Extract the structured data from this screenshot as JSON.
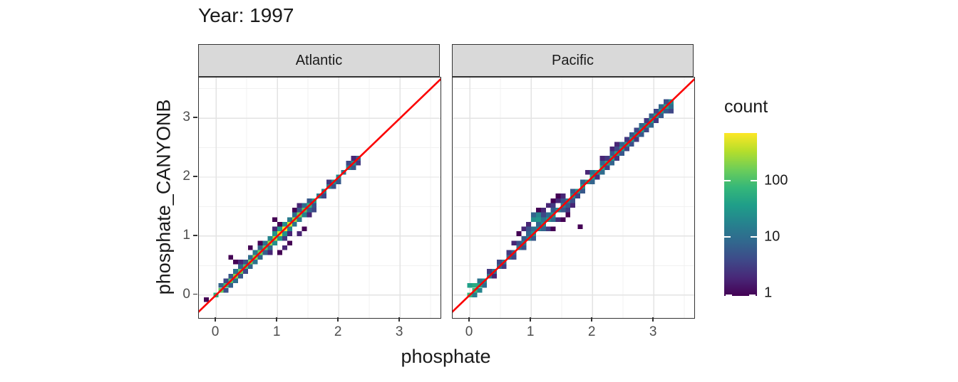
{
  "title": "Year: 1997",
  "axes": {
    "x_title": "phosphate",
    "y_title": "phosphate_CANYONB"
  },
  "legend": {
    "title": "count",
    "tick_labels": [
      "100",
      "10",
      "1"
    ]
  },
  "colors": {
    "strip_bg": "#d9d9d9",
    "strip_border": "#333333",
    "panel_border": "#333333",
    "grid_major": "#e3e3e3",
    "grid_minor": "#f1f1f1",
    "tick": "#333333",
    "tick_label": "#4d4d4d",
    "text": "#1a1a1a",
    "reference_line": "#fb0000",
    "viridis": [
      "#440154",
      "#482878",
      "#3e4a89",
      "#31688e",
      "#26828e",
      "#1f9e89",
      "#35b779",
      "#6ece58",
      "#b5de2b",
      "#fde725"
    ]
  },
  "chart_data": {
    "type": "heatmap",
    "subtype": "geom_bin2d_faceted",
    "title": "Year: 1997",
    "xlabel": "phosphate",
    "ylabel": "phosphate_CANYONB",
    "xlim": [
      -0.28,
      3.66
    ],
    "ylim": [
      -0.39,
      3.69
    ],
    "x_ticks": [
      0,
      1,
      2,
      3
    ],
    "y_ticks": [
      0,
      1,
      2,
      3
    ],
    "x_minor": [
      0.5,
      1.5,
      2.5,
      3.5
    ],
    "y_minor": [
      0.5,
      1.5,
      2.5,
      3.5
    ],
    "grid": true,
    "bin_size": 0.08,
    "reference_line": "y = x",
    "legend_position": "right",
    "color_scale": {
      "palette": "viridis",
      "transform": "log10",
      "domain": [
        1,
        700
      ],
      "legend_title": "count",
      "legend_ticks": [
        100,
        10,
        1
      ]
    },
    "facets": [
      {
        "name": "Atlantic",
        "bins": [
          [
            0.0,
            0.0,
            60
          ],
          [
            0.08,
            0.08,
            150
          ],
          [
            0.16,
            0.16,
            90
          ],
          [
            0.24,
            0.24,
            120
          ],
          [
            0.32,
            0.32,
            200
          ],
          [
            0.4,
            0.4,
            150
          ],
          [
            0.48,
            0.48,
            100
          ],
          [
            0.56,
            0.56,
            170
          ],
          [
            0.64,
            0.64,
            220
          ],
          [
            0.72,
            0.72,
            160
          ],
          [
            0.8,
            0.8,
            120
          ],
          [
            0.88,
            0.88,
            240
          ],
          [
            0.96,
            0.96,
            300
          ],
          [
            1.04,
            1.04,
            520
          ],
          [
            1.12,
            1.12,
            640
          ],
          [
            1.2,
            1.2,
            420
          ],
          [
            1.28,
            1.28,
            260
          ],
          [
            1.36,
            1.36,
            180
          ],
          [
            1.44,
            1.44,
            120
          ],
          [
            1.52,
            1.52,
            70
          ],
          [
            1.6,
            1.6,
            40
          ],
          [
            0.08,
            0.16,
            8
          ],
          [
            0.16,
            0.24,
            4
          ],
          [
            0.24,
            0.32,
            6
          ],
          [
            0.32,
            0.4,
            12
          ],
          [
            0.4,
            0.48,
            8
          ],
          [
            0.48,
            0.56,
            5
          ],
          [
            0.56,
            0.64,
            10
          ],
          [
            0.64,
            0.72,
            15
          ],
          [
            0.72,
            0.8,
            8
          ],
          [
            0.8,
            0.88,
            12
          ],
          [
            0.88,
            0.96,
            20
          ],
          [
            0.96,
            1.04,
            30
          ],
          [
            1.04,
            1.12,
            35
          ],
          [
            1.12,
            1.2,
            25
          ],
          [
            1.2,
            1.28,
            15
          ],
          [
            1.28,
            1.36,
            10
          ],
          [
            1.36,
            1.44,
            6
          ],
          [
            1.44,
            1.52,
            10
          ],
          [
            0.16,
            0.08,
            5
          ],
          [
            0.24,
            0.16,
            7
          ],
          [
            0.32,
            0.24,
            10
          ],
          [
            0.4,
            0.32,
            6
          ],
          [
            0.48,
            0.4,
            4
          ],
          [
            0.56,
            0.48,
            8
          ],
          [
            0.64,
            0.56,
            12
          ],
          [
            0.72,
            0.64,
            9
          ],
          [
            0.8,
            0.72,
            7
          ],
          [
            0.88,
            0.8,
            10
          ],
          [
            0.96,
            0.88,
            25
          ],
          [
            1.04,
            0.96,
            30
          ],
          [
            1.12,
            1.04,
            28
          ],
          [
            1.2,
            1.12,
            20
          ],
          [
            1.28,
            1.2,
            12
          ],
          [
            1.36,
            1.28,
            14
          ],
          [
            1.44,
            1.36,
            18
          ],
          [
            1.52,
            1.44,
            8
          ],
          [
            0.4,
            0.56,
            2
          ],
          [
            0.72,
            0.88,
            1
          ],
          [
            0.96,
            1.12,
            2
          ],
          [
            1.04,
            1.2,
            1
          ],
          [
            1.12,
            0.96,
            3
          ],
          [
            1.2,
            1.04,
            2
          ],
          [
            1.28,
            1.44,
            1
          ],
          [
            0.88,
            0.72,
            2
          ],
          [
            1.36,
            1.52,
            2
          ],
          [
            -0.16,
            -0.08,
            1
          ],
          [
            0.24,
            0.64,
            1
          ],
          [
            0.32,
            0.56,
            1
          ],
          [
            0.56,
            0.8,
            1
          ],
          [
            1.04,
            0.72,
            1
          ],
          [
            1.12,
            0.8,
            2
          ],
          [
            1.2,
            0.88,
            1
          ],
          [
            0.96,
            1.28,
            1
          ],
          [
            1.44,
            1.12,
            1
          ],
          [
            1.36,
            1.04,
            2
          ],
          [
            1.68,
            1.68,
            15
          ],
          [
            1.76,
            1.76,
            20
          ],
          [
            1.84,
            1.84,
            18
          ],
          [
            1.92,
            1.92,
            25
          ],
          [
            2.0,
            2.0,
            22
          ],
          [
            1.76,
            1.68,
            4
          ],
          [
            1.92,
            1.84,
            5
          ],
          [
            1.84,
            1.92,
            3
          ],
          [
            2.0,
            1.92,
            6
          ],
          [
            2.08,
            2.08,
            15
          ],
          [
            2.16,
            2.16,
            20
          ],
          [
            2.24,
            2.24,
            25
          ],
          [
            2.24,
            2.16,
            6
          ],
          [
            2.16,
            2.24,
            4
          ],
          [
            2.32,
            2.24,
            3
          ],
          [
            2.32,
            2.32,
            8
          ],
          [
            2.24,
            2.32,
            2
          ],
          [
            1.52,
            1.6,
            6
          ],
          [
            1.6,
            1.52,
            5
          ],
          [
            1.52,
            1.36,
            2
          ],
          [
            1.6,
            1.44,
            4
          ]
        ]
      },
      {
        "name": "Pacific",
        "bins": [
          [
            0.0,
            0.0,
            70
          ],
          [
            0.08,
            0.08,
            85
          ],
          [
            0.16,
            0.16,
            45
          ],
          [
            0.24,
            0.24,
            25
          ],
          [
            0.32,
            0.32,
            15
          ],
          [
            0.4,
            0.4,
            12
          ],
          [
            0.48,
            0.48,
            10
          ],
          [
            0.56,
            0.56,
            14
          ],
          [
            0.64,
            0.64,
            10
          ],
          [
            0.72,
            0.72,
            8
          ],
          [
            0.8,
            0.8,
            12
          ],
          [
            0.88,
            0.88,
            15
          ],
          [
            0.96,
            0.96,
            20
          ],
          [
            1.04,
            1.04,
            25
          ],
          [
            1.12,
            1.12,
            18
          ],
          [
            1.2,
            1.2,
            22
          ],
          [
            1.28,
            1.28,
            30
          ],
          [
            1.36,
            1.36,
            25
          ],
          [
            1.44,
            1.44,
            20
          ],
          [
            1.52,
            1.52,
            15
          ],
          [
            1.6,
            1.6,
            18
          ],
          [
            1.68,
            1.68,
            25
          ],
          [
            1.76,
            1.76,
            30
          ],
          [
            1.84,
            1.84,
            35
          ],
          [
            1.92,
            1.92,
            40
          ],
          [
            2.0,
            2.0,
            45
          ],
          [
            2.08,
            2.08,
            40
          ],
          [
            2.16,
            2.16,
            50
          ],
          [
            2.24,
            2.24,
            45
          ],
          [
            2.32,
            2.32,
            35
          ],
          [
            2.4,
            2.4,
            40
          ],
          [
            2.48,
            2.48,
            30
          ],
          [
            2.56,
            2.56,
            35
          ],
          [
            2.64,
            2.64,
            30
          ],
          [
            2.72,
            2.72,
            25
          ],
          [
            2.8,
            2.8,
            35
          ],
          [
            2.88,
            2.88,
            30
          ],
          [
            2.96,
            2.96,
            40
          ],
          [
            3.04,
            3.04,
            35
          ],
          [
            3.12,
            3.12,
            30
          ],
          [
            3.2,
            3.2,
            45
          ],
          [
            3.28,
            3.28,
            25
          ],
          [
            0.0,
            0.16,
            40
          ],
          [
            0.08,
            0.16,
            55
          ],
          [
            0.16,
            0.08,
            20
          ],
          [
            0.08,
            0.0,
            15
          ],
          [
            0.16,
            0.24,
            12
          ],
          [
            0.24,
            0.16,
            10
          ],
          [
            0.32,
            0.4,
            3
          ],
          [
            0.48,
            0.56,
            4
          ],
          [
            0.64,
            0.72,
            3
          ],
          [
            0.8,
            0.88,
            5
          ],
          [
            0.88,
            0.96,
            6
          ],
          [
            0.96,
            1.04,
            8
          ],
          [
            1.04,
            1.12,
            10
          ],
          [
            1.12,
            1.2,
            8
          ],
          [
            1.2,
            1.28,
            12
          ],
          [
            1.28,
            1.36,
            10
          ],
          [
            1.36,
            1.44,
            6
          ],
          [
            1.52,
            1.6,
            5
          ],
          [
            1.68,
            1.76,
            6
          ],
          [
            1.84,
            1.92,
            8
          ],
          [
            2.0,
            2.08,
            10
          ],
          [
            2.16,
            2.24,
            8
          ],
          [
            2.32,
            2.4,
            6
          ],
          [
            2.48,
            2.56,
            8
          ],
          [
            2.64,
            2.72,
            6
          ],
          [
            2.8,
            2.88,
            8
          ],
          [
            2.96,
            3.04,
            6
          ],
          [
            3.12,
            3.2,
            8
          ],
          [
            0.4,
            0.32,
            2
          ],
          [
            0.56,
            0.48,
            3
          ],
          [
            0.72,
            0.64,
            4
          ],
          [
            0.88,
            0.8,
            5
          ],
          [
            1.04,
            0.96,
            6
          ],
          [
            1.2,
            1.12,
            8
          ],
          [
            1.36,
            1.28,
            10
          ],
          [
            1.52,
            1.44,
            6
          ],
          [
            1.68,
            1.6,
            5
          ],
          [
            1.84,
            1.76,
            6
          ],
          [
            2.0,
            1.92,
            8
          ],
          [
            2.16,
            2.08,
            10
          ],
          [
            2.32,
            2.24,
            8
          ],
          [
            2.48,
            2.4,
            6
          ],
          [
            2.64,
            2.56,
            5
          ],
          [
            2.8,
            2.72,
            6
          ],
          [
            2.96,
            2.88,
            8
          ],
          [
            3.12,
            3.04,
            6
          ],
          [
            3.28,
            3.2,
            10
          ],
          [
            0.96,
            1.2,
            2
          ],
          [
            1.04,
            1.28,
            25
          ],
          [
            1.12,
            1.28,
            30
          ],
          [
            1.12,
            1.36,
            20
          ],
          [
            1.04,
            1.36,
            8
          ],
          [
            1.2,
            1.36,
            4
          ],
          [
            0.88,
            1.12,
            2
          ],
          [
            0.96,
            1.12,
            5
          ],
          [
            0.8,
            1.04,
            1
          ],
          [
            1.28,
            1.52,
            2
          ],
          [
            1.36,
            1.6,
            1
          ],
          [
            1.44,
            1.6,
            2
          ],
          [
            1.28,
            1.12,
            3
          ],
          [
            1.36,
            1.12,
            1
          ],
          [
            1.44,
            1.28,
            2
          ],
          [
            1.52,
            1.28,
            1
          ],
          [
            1.6,
            1.36,
            1
          ],
          [
            1.8,
            1.16,
            1
          ],
          [
            1.2,
            1.44,
            2
          ],
          [
            1.12,
            1.44,
            1
          ],
          [
            1.36,
            1.52,
            3
          ],
          [
            1.44,
            1.68,
            1
          ],
          [
            1.52,
            1.68,
            2
          ],
          [
            1.6,
            1.44,
            3
          ],
          [
            1.68,
            1.52,
            2
          ],
          [
            1.76,
            1.68,
            4
          ],
          [
            1.6,
            1.52,
            6
          ],
          [
            0.72,
            0.88,
            2
          ],
          [
            2.24,
            2.32,
            3
          ],
          [
            2.4,
            2.48,
            4
          ],
          [
            2.56,
            2.64,
            3
          ],
          [
            2.72,
            2.8,
            4
          ],
          [
            2.88,
            2.96,
            3
          ],
          [
            3.04,
            3.12,
            4
          ],
          [
            2.08,
            2.0,
            3
          ],
          [
            2.24,
            2.16,
            4
          ],
          [
            2.4,
            2.32,
            3
          ],
          [
            2.56,
            2.48,
            4
          ],
          [
            2.72,
            2.64,
            3
          ],
          [
            2.88,
            2.8,
            4
          ],
          [
            3.04,
            2.96,
            3
          ],
          [
            3.2,
            3.12,
            6
          ],
          [
            3.2,
            3.28,
            5
          ],
          [
            3.28,
            3.12,
            4
          ],
          [
            2.32,
            2.48,
            2
          ],
          [
            2.4,
            2.56,
            2
          ],
          [
            2.16,
            2.32,
            2
          ],
          [
            1.92,
            2.08,
            2
          ]
        ]
      }
    ]
  }
}
